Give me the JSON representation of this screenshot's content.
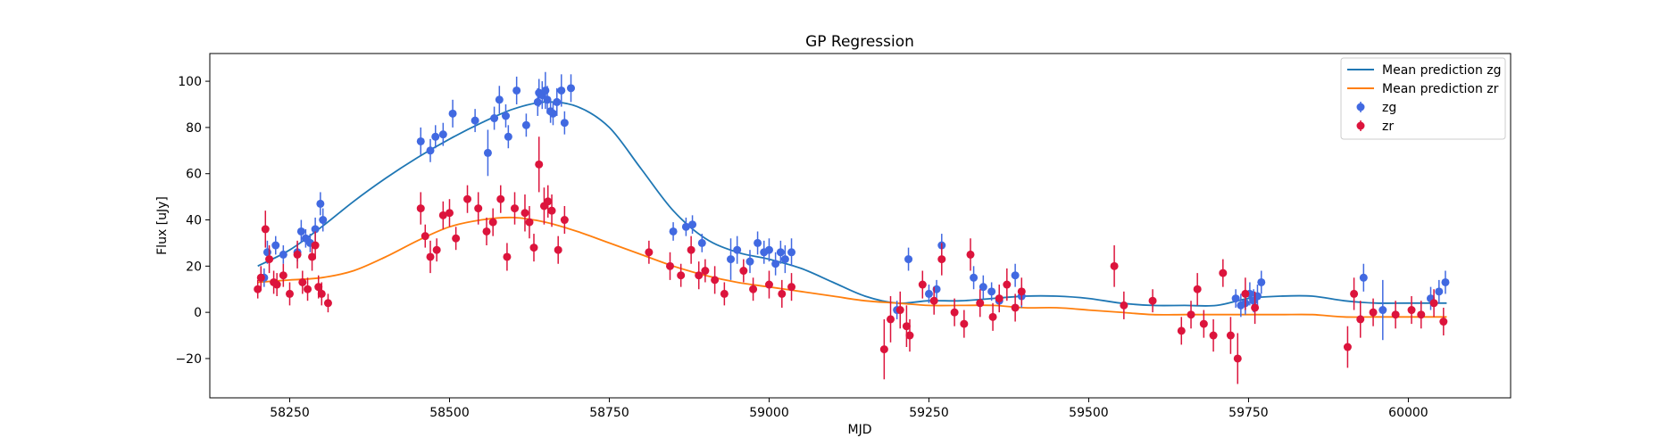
{
  "chart_data": {
    "type": "scatter",
    "title": "GP Regression",
    "xlabel": "MJD",
    "ylabel": "Flux [uJy]",
    "xlim": [
      58125,
      60160
    ],
    "ylim": [
      -37,
      112
    ],
    "xticks": [
      58250,
      58500,
      58750,
      59000,
      59250,
      59500,
      59750,
      60000
    ],
    "yticks": [
      -20,
      0,
      20,
      40,
      60,
      80,
      100
    ],
    "legend_position": "top-right",
    "series": [
      {
        "name": "Mean prediction zg",
        "kind": "line",
        "color": "#1f77b4",
        "x": [
          58200,
          58250,
          58300,
          58350,
          58400,
          58450,
          58500,
          58550,
          58600,
          58650,
          58700,
          58750,
          58800,
          58850,
          58900,
          58950,
          59000,
          59050,
          59100,
          59150,
          59200,
          59250,
          59300,
          59350,
          59400,
          59450,
          59500,
          59550,
          59600,
          59650,
          59700,
          59750,
          59800,
          59850,
          59900,
          59950,
          60000,
          60060
        ],
        "y": [
          20,
          27,
          37,
          48,
          58,
          67,
          75,
          82,
          88,
          91,
          89,
          80,
          62,
          44,
          32,
          26,
          23,
          19,
          13,
          7,
          4,
          5,
          5,
          6,
          7,
          7,
          6,
          4,
          3,
          3,
          3,
          6,
          7,
          7,
          5,
          4,
          4,
          4
        ]
      },
      {
        "name": "Mean prediction zr",
        "kind": "line",
        "color": "#ff7f0e",
        "x": [
          58200,
          58250,
          58300,
          58350,
          58400,
          58450,
          58500,
          58550,
          58600,
          58650,
          58700,
          58750,
          58800,
          58850,
          58900,
          58950,
          59000,
          59050,
          59100,
          59150,
          59200,
          59250,
          59300,
          59350,
          59400,
          59450,
          59500,
          59550,
          59600,
          59650,
          59700,
          59750,
          59800,
          59850,
          59900,
          59950,
          60000,
          60060
        ],
        "y": [
          13,
          14,
          15,
          18,
          24,
          31,
          37,
          40,
          41,
          39,
          35,
          30,
          25,
          20,
          16,
          13,
          11,
          9,
          7,
          5,
          4,
          3,
          3,
          3,
          2,
          2,
          1,
          0,
          -1,
          -1,
          -1,
          -1,
          -1,
          -1,
          -2,
          -2,
          -2,
          -2
        ]
      },
      {
        "name": "zg",
        "kind": "errorbar",
        "color": "#4169e1",
        "x": [
          58210,
          58215,
          58228,
          58240,
          58262,
          58268,
          58275,
          58282,
          58290,
          58298,
          58302,
          58455,
          58470,
          58478,
          58490,
          58505,
          58540,
          58560,
          58570,
          58578,
          58588,
          58592,
          58605,
          58620,
          58638,
          58640,
          58645,
          58650,
          58653,
          58658,
          58662,
          58668,
          58675,
          58680,
          58690,
          58850,
          58870,
          58880,
          58895,
          58940,
          58950,
          58970,
          58982,
          58992,
          59000,
          59010,
          59018,
          59025,
          59035,
          59200,
          59218,
          59250,
          59262,
          59270,
          59320,
          59335,
          59348,
          59360,
          59385,
          59395,
          59730,
          59738,
          59745,
          59752,
          59758,
          59764,
          59770,
          59930,
          59960,
          60035,
          60048,
          60058
        ],
        "y": [
          15,
          26,
          29,
          25,
          26,
          35,
          32,
          30,
          36,
          47,
          40,
          74,
          70,
          76,
          77,
          86,
          83,
          69,
          84,
          92,
          85,
          76,
          96,
          81,
          91,
          95,
          94,
          96,
          92,
          87,
          86,
          91,
          96,
          82,
          97,
          35,
          37,
          38,
          30,
          23,
          27,
          22,
          30,
          26,
          27,
          21,
          26,
          23,
          26,
          1,
          23,
          8,
          10,
          29,
          15,
          11,
          9,
          5,
          16,
          7,
          6,
          3,
          4,
          8,
          5,
          7,
          13,
          15,
          1,
          6,
          9,
          13
        ],
        "yerr": [
          4,
          5,
          4,
          4,
          4,
          5,
          4,
          4,
          5,
          5,
          5,
          6,
          5,
          5,
          5,
          6,
          5,
          10,
          5,
          6,
          5,
          5,
          6,
          5,
          6,
          6,
          6,
          8,
          6,
          5,
          5,
          6,
          7,
          5,
          6,
          4,
          4,
          4,
          4,
          9,
          6,
          5,
          5,
          5,
          5,
          5,
          5,
          6,
          6,
          4,
          5,
          4,
          4,
          5,
          5,
          5,
          4,
          4,
          5,
          5,
          4,
          5,
          5,
          5,
          5,
          5,
          5,
          6,
          13,
          5,
          5,
          5
        ]
      },
      {
        "name": "zr",
        "kind": "errorbar",
        "color": "#dc143c",
        "x": [
          58200,
          58205,
          58212,
          58218,
          58225,
          58230,
          58240,
          58250,
          58262,
          58270,
          58278,
          58285,
          58290,
          58295,
          58300,
          58310,
          58455,
          58462,
          58470,
          58480,
          58490,
          58500,
          58510,
          58528,
          58545,
          58558,
          58568,
          58580,
          58590,
          58602,
          58618,
          58625,
          58632,
          58640,
          58648,
          58654,
          58660,
          58670,
          58680,
          58812,
          58845,
          58862,
          58878,
          58890,
          58900,
          58915,
          58930,
          58960,
          58975,
          59000,
          59020,
          59035,
          59180,
          59190,
          59205,
          59215,
          59220,
          59240,
          59258,
          59270,
          59290,
          59305,
          59315,
          59330,
          59350,
          59360,
          59372,
          59385,
          59395,
          59540,
          59555,
          59600,
          59645,
          59660,
          59670,
          59680,
          59695,
          59710,
          59722,
          59733,
          59745,
          59760,
          59905,
          59915,
          59925,
          59945,
          59980,
          60005,
          60020,
          60040,
          60055
        ],
        "y": [
          10,
          15,
          36,
          23,
          13,
          12,
          16,
          8,
          25,
          13,
          10,
          24,
          29,
          11,
          8,
          4,
          45,
          33,
          24,
          27,
          42,
          43,
          32,
          49,
          45,
          35,
          39,
          49,
          24,
          45,
          43,
          39,
          28,
          64,
          46,
          48,
          44,
          27,
          40,
          26,
          20,
          16,
          27,
          16,
          18,
          14,
          8,
          18,
          10,
          12,
          8,
          11,
          -16,
          -3,
          1,
          -6,
          -10,
          12,
          5,
          23,
          0,
          -5,
          25,
          4,
          -2,
          6,
          12,
          2,
          9,
          20,
          3,
          5,
          -8,
          -1,
          10,
          -5,
          -10,
          17,
          -10,
          -20,
          8,
          2,
          -15,
          8,
          -3,
          0,
          -1,
          1,
          -1,
          4,
          -4
        ],
        "yerr": [
          4,
          5,
          8,
          6,
          5,
          5,
          5,
          5,
          6,
          5,
          5,
          6,
          6,
          5,
          5,
          4,
          7,
          5,
          7,
          5,
          6,
          6,
          5,
          6,
          7,
          6,
          6,
          6,
          6,
          7,
          8,
          7,
          6,
          12,
          8,
          7,
          7,
          6,
          6,
          5,
          6,
          5,
          6,
          6,
          5,
          6,
          5,
          5,
          5,
          6,
          6,
          6,
          13,
          10,
          8,
          9,
          7,
          6,
          6,
          7,
          6,
          6,
          7,
          6,
          6,
          6,
          7,
          6,
          6,
          9,
          6,
          5,
          6,
          6,
          7,
          6,
          7,
          6,
          8,
          11,
          7,
          7,
          9,
          7,
          8,
          6,
          6,
          6,
          6,
          6,
          6
        ]
      }
    ]
  }
}
